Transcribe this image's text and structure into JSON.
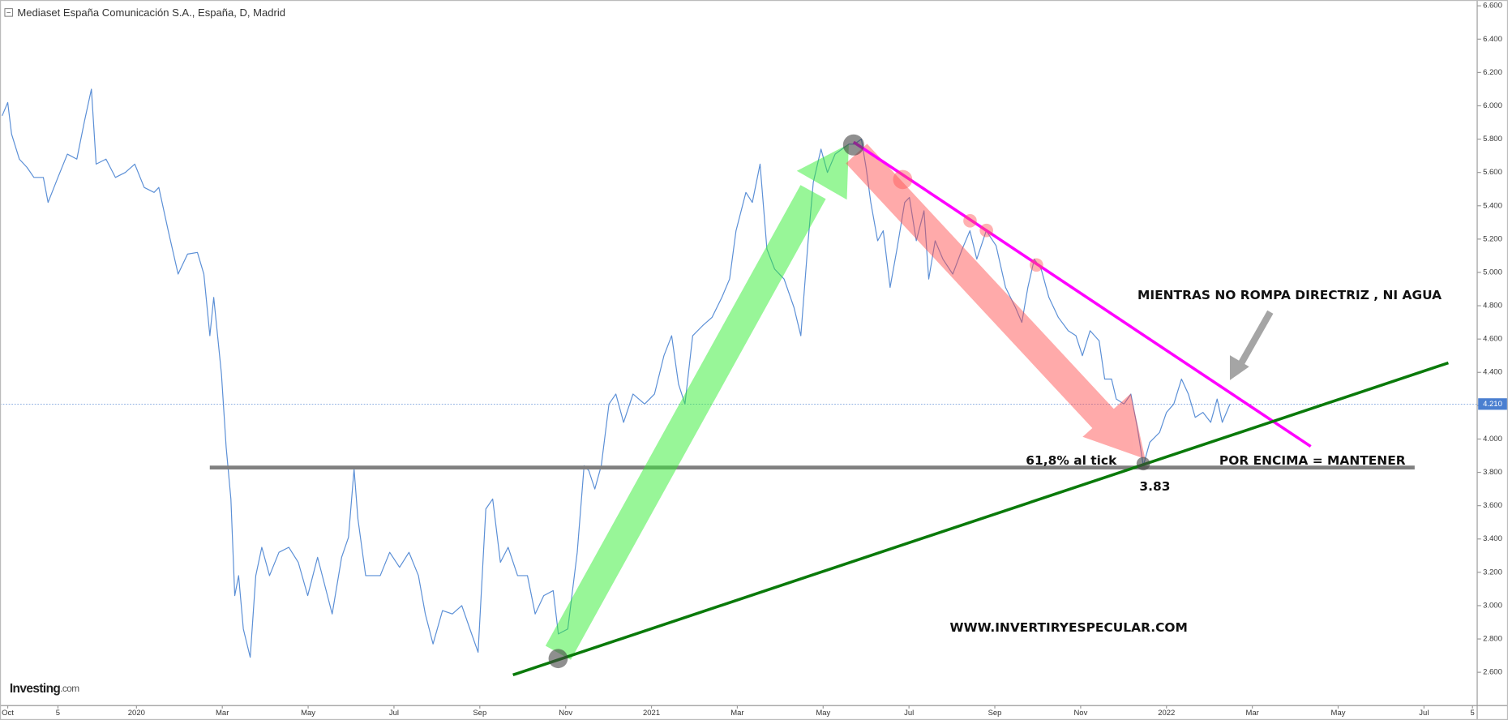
{
  "chart_data": {
    "type": "line",
    "title": "Mediaset España Comunicación S.A., España, D, Madrid",
    "color": "#5b8fd6",
    "x": [
      -0.13,
      0,
      0.09,
      0.27,
      0.45,
      0.61,
      0.83,
      0.94,
      1.17,
      1.39,
      1.61,
      1.79,
      1.95,
      2.06,
      2.29,
      2.51,
      2.74,
      2.96,
      3.18,
      3.41,
      3.52,
      3.74,
      3.97,
      4.19,
      4.42,
      4.57,
      4.71,
      4.8,
      4.98,
      5.09,
      5.2,
      5.29,
      5.38,
      5.49,
      5.65,
      5.78,
      5.92,
      6.1,
      6.32,
      6.55,
      6.77,
      6.99,
      7.22,
      7.56,
      7.78,
      7.94,
      8.07,
      8.16,
      8.34,
      8.68,
      8.9,
      9.13,
      9.35,
      9.57,
      9.73,
      9.91,
      10.13,
      10.36,
      10.58,
      10.81,
      10.96,
      11.14,
      11.3,
      11.48,
      11.66,
      11.88,
      12.11,
      12.29,
      12.49,
      12.71,
      12.83,
      13.05,
      13.27,
      13.43,
      13.54,
      13.68,
      13.83,
      14.01,
      14.17,
      14.35,
      14.57,
      14.84,
      15.07,
      15.29,
      15.47,
      15.63,
      15.78,
      15.96,
      16.19,
      16.41,
      16.64,
      16.82,
      16.97,
      17.2,
      17.35,
      17.53,
      17.69,
      17.87,
      18.09,
      18.32,
      18.48,
      18.65,
      18.77,
      18.95,
      19.1,
      19.28,
      19.44,
      19.6,
      19.73,
      19.89,
      20,
      20.11,
      20.27,
      20.4,
      20.56,
      20.72,
      20.9,
      21.01,
      21.17,
      21.35,
      21.46,
      21.61,
      21.79,
      22.02,
      22.24,
      22.42,
      22.58,
      22.8,
      23.03,
      23.25,
      23.48,
      23.63,
      23.77,
      23.92,
      24.08,
      24.26,
      24.48,
      24.71,
      24.89,
      25.04,
      25.22,
      25.43,
      25.56,
      25.72,
      25.83,
      26.01,
      26.17,
      26.32,
      26.46,
      26.61,
      26.84,
      27,
      27.17,
      27.35,
      27.51,
      27.67,
      27.85,
      28.03,
      28.18,
      28.3,
      28.48
    ],
    "values": [
      5.94,
      6.02,
      5.83,
      5.68,
      5.63,
      5.57,
      5.57,
      5.42,
      5.57,
      5.71,
      5.68,
      5.91,
      6.1,
      5.65,
      5.68,
      5.57,
      5.6,
      5.65,
      5.51,
      5.48,
      5.51,
      5.25,
      4.99,
      5.11,
      5.12,
      4.99,
      4.62,
      4.85,
      4.39,
      3.95,
      3.64,
      3.06,
      3.18,
      2.86,
      2.69,
      3.18,
      3.35,
      3.18,
      3.32,
      3.35,
      3.26,
      3.06,
      3.29,
      2.95,
      3.29,
      3.41,
      3.82,
      3.52,
      3.18,
      3.18,
      3.32,
      3.23,
      3.32,
      3.18,
      2.95,
      2.77,
      2.97,
      2.95,
      3.0,
      2.83,
      2.72,
      3.58,
      3.64,
      3.26,
      3.35,
      3.18,
      3.18,
      2.95,
      3.06,
      3.09,
      2.83,
      2.86,
      3.32,
      3.84,
      3.81,
      3.7,
      3.84,
      4.21,
      4.27,
      4.1,
      4.27,
      4.21,
      4.27,
      4.5,
      4.62,
      4.33,
      4.21,
      4.62,
      4.68,
      4.73,
      4.85,
      4.96,
      5.25,
      5.48,
      5.42,
      5.65,
      5.14,
      5.02,
      4.96,
      4.79,
      4.62,
      5.19,
      5.54,
      5.74,
      5.6,
      5.71,
      5.74,
      5.77,
      5.77,
      5.8,
      5.63,
      5.42,
      5.19,
      5.25,
      4.91,
      5.14,
      5.42,
      5.45,
      5.19,
      5.37,
      4.96,
      5.19,
      5.08,
      4.99,
      5.14,
      5.25,
      5.08,
      5.25,
      5.16,
      4.91,
      4.79,
      4.7,
      4.91,
      5.08,
      5.02,
      4.85,
      4.73,
      4.65,
      4.62,
      4.5,
      4.65,
      4.59,
      4.36,
      4.36,
      4.24,
      4.21,
      4.27,
      4.07,
      3.84,
      3.98,
      4.04,
      4.16,
      4.21,
      4.36,
      4.27,
      4.13,
      4.16,
      4.1,
      4.24,
      4.1,
      4.21
    ],
    "xlim": [
      -0.18,
      34.24
    ],
    "ylim": [
      2.4,
      6.635
    ],
    "xticks": [
      {
        "value": 0,
        "label": "Oct"
      },
      {
        "value": 1.17,
        "label": "5"
      },
      {
        "value": 3,
        "label": "2020"
      },
      {
        "value": 5,
        "label": "Mar"
      },
      {
        "value": 7,
        "label": "May"
      },
      {
        "value": 9,
        "label": "Jul"
      },
      {
        "value": 11,
        "label": "Sep"
      },
      {
        "value": 13,
        "label": "Nov"
      },
      {
        "value": 15,
        "label": "2021"
      },
      {
        "value": 17,
        "label": "Mar"
      },
      {
        "value": 19,
        "label": "May"
      },
      {
        "value": 21,
        "label": "Jul"
      },
      {
        "value": 23,
        "label": "Sep"
      },
      {
        "value": 25,
        "label": "Nov"
      },
      {
        "value": 27,
        "label": "2022"
      },
      {
        "value": 29,
        "label": "Mar"
      },
      {
        "value": 31,
        "label": "May"
      },
      {
        "value": 33,
        "label": "Jul"
      },
      {
        "value": 34.13,
        "label": "5"
      }
    ],
    "yticks": [
      {
        "value": 2.6,
        "label": "2.600"
      },
      {
        "value": 2.8,
        "label": "2.800"
      },
      {
        "value": 3.0,
        "label": "3.000"
      },
      {
        "value": 3.2,
        "label": "3.200"
      },
      {
        "value": 3.4,
        "label": "3.400"
      },
      {
        "value": 3.6,
        "label": "3.600"
      },
      {
        "value": 3.8,
        "label": "3.800"
      },
      {
        "value": 4.0,
        "label": "4.000"
      },
      {
        "value": 4.2,
        "label": "4.200"
      },
      {
        "value": 4.4,
        "label": "4.400"
      },
      {
        "value": 4.6,
        "label": "4.600"
      },
      {
        "value": 4.8,
        "label": "4.800"
      },
      {
        "value": 5.0,
        "label": "5.000"
      },
      {
        "value": 5.2,
        "label": "5.200"
      },
      {
        "value": 5.4,
        "label": "5.400"
      },
      {
        "value": 5.6,
        "label": "5.600"
      },
      {
        "value": 5.8,
        "label": "5.800"
      },
      {
        "value": 6.0,
        "label": "6.000"
      },
      {
        "value": 6.2,
        "label": "6.200"
      },
      {
        "value": 6.4,
        "label": "6.400"
      },
      {
        "value": 6.6,
        "label": "6.600"
      }
    ],
    "last_price": {
      "value": 4.21,
      "label": "4.210"
    },
    "annotations": [
      "MIENTRAS NO ROMPA DIRECTRIZ , NI AGUA",
      "61,8% al tick",
      "POR ENCIMA = MANTENER",
      "3.83",
      "WWW.INVERTIRYESPECULAR.COM"
    ],
    "logo": {
      "brand": "Investing",
      "suffix": ".com"
    }
  }
}
